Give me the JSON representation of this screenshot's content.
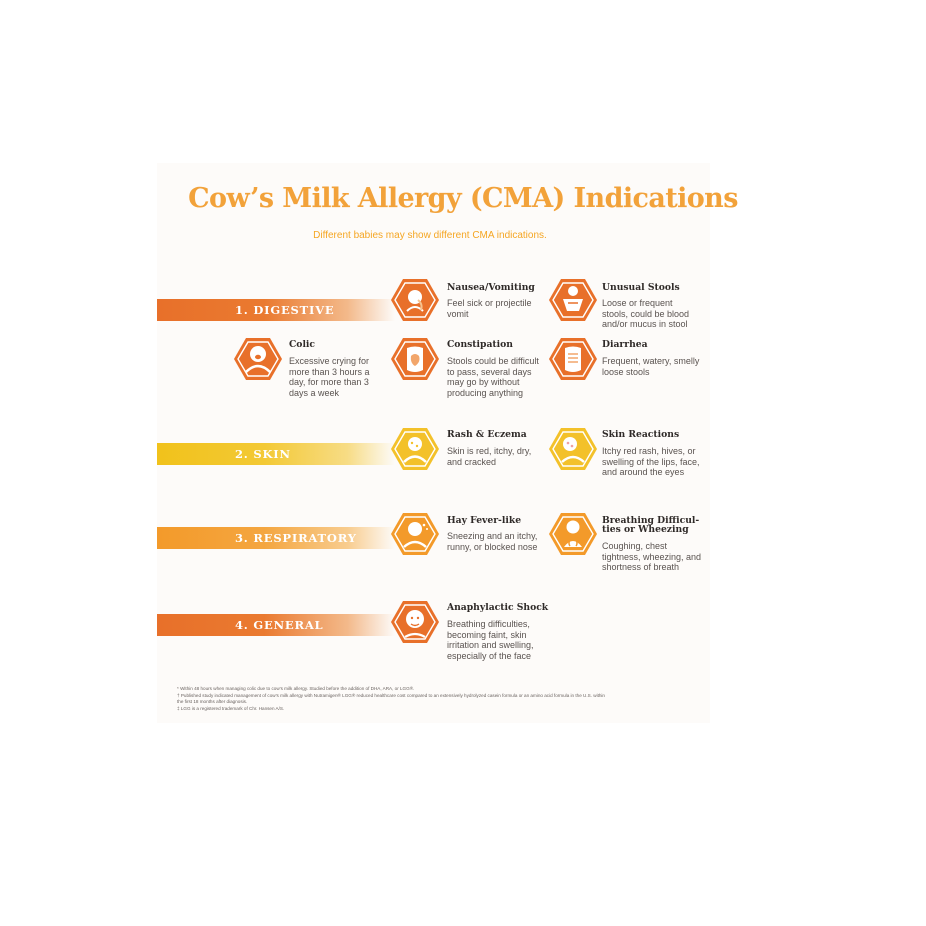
{
  "header": {
    "title": "Cow’s Milk Allergy (CMA) Indications",
    "subtitle": "Different babies may show different CMA indications."
  },
  "sections": [
    {
      "label": "1. DIGESTIVE",
      "color": "#e8702a"
    },
    {
      "label": "2. SKIN",
      "color": "#f1c21b"
    },
    {
      "label": "3. RESPIRATORY",
      "color": "#f39a2a"
    },
    {
      "label": "4. GENERAL",
      "color": "#e8702a"
    }
  ],
  "items": {
    "nausea": {
      "title": "Nausea/Vomiting",
      "desc": "Feel sick or projectile\nvomit",
      "icon": "vomiting-baby-icon"
    },
    "stools": {
      "title": "Unusual Stools",
      "desc": "Loose or frequent\nstools, could be blood\nand/or mucus in stool",
      "icon": "diaper-icon"
    },
    "colic": {
      "title": "Colic",
      "desc": "Excessive crying for\nmore than 3 hours a\nday, for more than 3\ndays a week",
      "icon": "crying-baby-icon"
    },
    "constipation": {
      "title": "Constipation",
      "desc": "Stools could be difficult\nto pass, several days\nmay go by without\nproducing anything",
      "icon": "stomach-icon"
    },
    "diarrhea": {
      "title": "Diarrhea",
      "desc": "Frequent, watery, smelly\nloose stools",
      "icon": "intestine-icon"
    },
    "rash": {
      "title": "Rash & Eczema",
      "desc": "Skin is red, itchy, dry,\nand cracked",
      "icon": "rash-baby-icon"
    },
    "skin": {
      "title": "Skin Reactions",
      "desc": "Itchy red rash, hives, or\nswelling of the lips, face,\nand around the eyes",
      "icon": "face-hives-icon"
    },
    "hayfever": {
      "title": "Hay Fever-like",
      "desc": "Sneezing and an itchy,\nrunny, or blocked nose",
      "icon": "sneezing-baby-icon"
    },
    "breathing": {
      "title": "Breathing Difficul-\nties or Wheezing",
      "desc": "Coughing, chest\ntightness, wheezing, and\nshortness of breath",
      "icon": "lungs-baby-icon"
    },
    "shock": {
      "title": "Anaphylactic Shock",
      "desc": "Breathing difficulties,\nbecoming faint, skin\nirritation and swelling,\nespecially of the face",
      "icon": "swollen-face-icon"
    }
  },
  "footnotes": [
    "* Within 48 hours when managing colic due to cow’s milk allergy. Studied before the addition of DHA, ARA, or LGG®.",
    "† Published study indicated management of cow’s milk allergy with Nutramigen® LGG® reduced healthcare cost compared to an extensively hydrolyzed casein formula or an amino acid formula in the U.S. within",
    "   the first 18 months after diagnosis.",
    "‡ LGG is a registered trademark of Chr. Hansen A/S."
  ],
  "colors": {
    "title": "#f2a23a",
    "hex_orange": "#e8702a",
    "hex_yellow": "#f3c12a",
    "hex_amber": "#f39a2a",
    "text": "#2f2a28"
  }
}
